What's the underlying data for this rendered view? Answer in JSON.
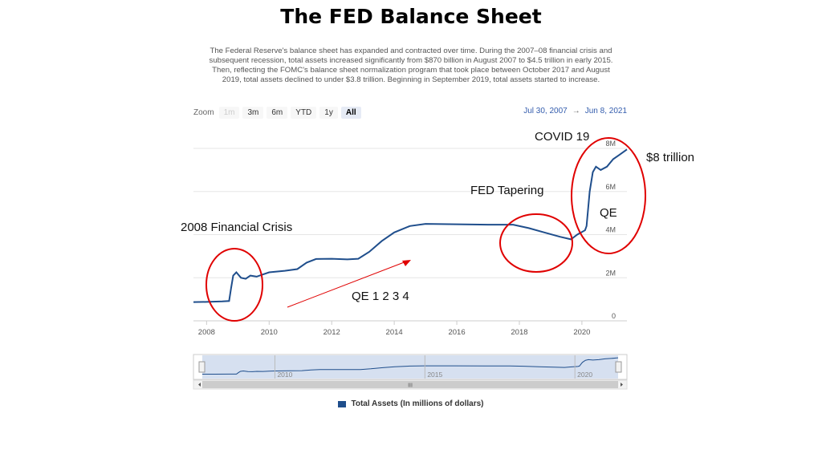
{
  "title": "The FED Balance Sheet",
  "description": "The Federal Reserve's balance sheet has expanded and contracted over time. During the 2007–08 financial crisis and subsequent recession, total assets increased significantly from $870 billion in August 2007 to $4.5 trillion in early 2015. Then, reflecting the FOMC's balance sheet normalization program that took place between October 2017 and August 2019, total assets declined to under $3.8 trillion. Beginning in September 2019, total assets started to increase.",
  "zoom": {
    "label": "Zoom",
    "buttons": [
      {
        "label": "1m",
        "state": "disabled"
      },
      {
        "label": "3m",
        "state": "normal"
      },
      {
        "label": "6m",
        "state": "normal"
      },
      {
        "label": "YTD",
        "state": "normal"
      },
      {
        "label": "1y",
        "state": "normal"
      },
      {
        "label": "All",
        "state": "selected"
      }
    ]
  },
  "range": {
    "from": "Jul 30, 2007",
    "arrow": "→",
    "to": "Jun 8, 2021"
  },
  "annotations": {
    "crisis": "2008 Financial Crisis",
    "qe1234": "QE 1 2 3 4",
    "tapering": "FED Tapering",
    "covid": "COVID 19",
    "qe": "QE",
    "eight_trillion": "$8 trillion"
  },
  "colors": {
    "series": "#1f4e8c",
    "annotation": "#e00000",
    "navigator_fill": "#d6e0f0"
  },
  "chart_data": {
    "type": "line",
    "series": [
      {
        "name": "Total Assets (In millions of dollars)",
        "points": [
          [
            2007.58,
            870000
          ],
          [
            2008.0,
            880000
          ],
          [
            2008.5,
            900000
          ],
          [
            2008.72,
            920000
          ],
          [
            2008.78,
            1500000
          ],
          [
            2008.85,
            2100000
          ],
          [
            2008.95,
            2250000
          ],
          [
            2009.1,
            2000000
          ],
          [
            2009.25,
            1950000
          ],
          [
            2009.4,
            2100000
          ],
          [
            2009.6,
            2050000
          ],
          [
            2009.8,
            2150000
          ],
          [
            2010.0,
            2250000
          ],
          [
            2010.5,
            2320000
          ],
          [
            2010.9,
            2400000
          ],
          [
            2011.2,
            2700000
          ],
          [
            2011.5,
            2870000
          ],
          [
            2012.0,
            2880000
          ],
          [
            2012.5,
            2850000
          ],
          [
            2012.85,
            2880000
          ],
          [
            2013.2,
            3200000
          ],
          [
            2013.6,
            3700000
          ],
          [
            2014.0,
            4100000
          ],
          [
            2014.5,
            4400000
          ],
          [
            2015.0,
            4500000
          ],
          [
            2016.0,
            4480000
          ],
          [
            2017.0,
            4460000
          ],
          [
            2017.8,
            4460000
          ],
          [
            2018.3,
            4300000
          ],
          [
            2018.8,
            4100000
          ],
          [
            2019.3,
            3900000
          ],
          [
            2019.65,
            3780000
          ],
          [
            2019.85,
            4000000
          ],
          [
            2020.1,
            4200000
          ],
          [
            2020.15,
            4400000
          ],
          [
            2020.25,
            6000000
          ],
          [
            2020.35,
            6900000
          ],
          [
            2020.45,
            7150000
          ],
          [
            2020.6,
            7000000
          ],
          [
            2020.8,
            7150000
          ],
          [
            2021.0,
            7500000
          ],
          [
            2021.2,
            7700000
          ],
          [
            2021.44,
            7950000
          ]
        ]
      }
    ],
    "x_ticks": [
      "2008",
      "2010",
      "2012",
      "2014",
      "2016",
      "2018",
      "2020"
    ],
    "y_ticks": [
      "0",
      "2M",
      "4M",
      "6M",
      "8M"
    ],
    "navigator_ticks": [
      "2010",
      "2015",
      "2020"
    ],
    "xlim": [
      2007.58,
      2021.44
    ],
    "ylim": [
      0,
      8000000
    ],
    "grid": "horizontal",
    "legend": "bottom-center"
  },
  "legend_label": "Total Assets (In millions of dollars)",
  "scrollbar_grip": "III"
}
